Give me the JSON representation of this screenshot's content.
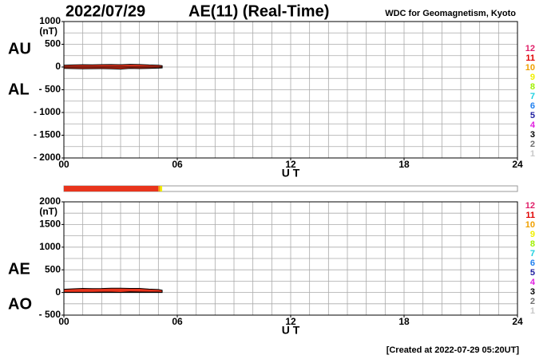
{
  "header": {
    "date": "2022/07/29",
    "title": "AE(11) (Real-Time)",
    "source": "WDC for Geomagnetism, Kyoto"
  },
  "footer": "[Created at 2022-07-29 05:20UT]",
  "coverage_bar": {
    "xlim": [
      0,
      24
    ],
    "segments": [
      {
        "start": 0,
        "end": 5.0,
        "color": "#e8341c"
      },
      {
        "start": 5.0,
        "end": 5.1,
        "color": "#f0a000"
      },
      {
        "start": 5.1,
        "end": 5.2,
        "color": "#f0f000"
      }
    ]
  },
  "chart_data": [
    {
      "type": "area",
      "unit": "(nT)",
      "xlabel": "U T",
      "side_labels": [
        "AU",
        "AL"
      ],
      "xlim": [
        0,
        24
      ],
      "ylim": [
        -2000,
        1000
      ],
      "xticks": [
        {
          "value": 0,
          "label": "00"
        },
        {
          "value": 6,
          "label": "06"
        },
        12,
        18,
        24
      ],
      "yticks": [
        1000,
        500,
        0,
        {
          "value": -500,
          "label": "- 500"
        },
        {
          "value": -1000,
          "label": "- 1000"
        },
        {
          "value": -1500,
          "label": "- 1500"
        },
        {
          "value": -2000,
          "label": "- 2000"
        }
      ],
      "xgrid": [
        1,
        2,
        3,
        4,
        5,
        6,
        7,
        8,
        9,
        10,
        11,
        12,
        13,
        14,
        15,
        16,
        17,
        18,
        19,
        20,
        21,
        22,
        23
      ],
      "ygrid": [
        750,
        500,
        250,
        0,
        -250,
        -500,
        -750,
        -1000,
        -1250,
        -1500,
        -1750
      ],
      "x": [
        0,
        0.5,
        1,
        1.5,
        2,
        2.5,
        3,
        3.5,
        4,
        4.5,
        5,
        5.2
      ],
      "series": [
        {
          "name": "AU",
          "style": "area",
          "color": "#e8341c",
          "values": [
            40,
            45,
            50,
            48,
            52,
            55,
            50,
            60,
            55,
            45,
            40,
            30
          ]
        },
        {
          "name": "AL",
          "style": "area",
          "color": "#e8341c",
          "values": [
            -30,
            -35,
            -40,
            -38,
            -35,
            -40,
            -45,
            -30,
            -35,
            -30,
            -25,
            -20
          ]
        }
      ],
      "legend": [
        {
          "label": "12",
          "color": "#e0206a"
        },
        {
          "label": "11",
          "color": "#e00000"
        },
        {
          "label": "10",
          "color": "#f0a000"
        },
        {
          "label": "9",
          "color": "#f0f000"
        },
        {
          "label": "8",
          "color": "#a0f000"
        },
        {
          "label": "7",
          "color": "#20d0e0"
        },
        {
          "label": "6",
          "color": "#2080f0"
        },
        {
          "label": "5",
          "color": "#2020a0"
        },
        {
          "label": "4",
          "color": "#e020e0"
        },
        {
          "label": "3",
          "color": "#000000"
        },
        {
          "label": "2",
          "color": "#707070"
        },
        {
          "label": "1",
          "color": "#c8c8c8"
        }
      ]
    },
    {
      "type": "area",
      "unit": "(nT)",
      "xlabel": "U T",
      "side_labels": [
        "AE",
        "AO"
      ],
      "xlim": [
        0,
        24
      ],
      "ylim": [
        -500,
        2000
      ],
      "xticks": [
        {
          "value": 0,
          "label": "00"
        },
        {
          "value": 6,
          "label": "06"
        },
        12,
        18,
        24
      ],
      "yticks": [
        2000,
        1500,
        1000,
        500,
        0,
        {
          "value": -500,
          "label": "- 500"
        }
      ],
      "xgrid": [
        1,
        2,
        3,
        4,
        5,
        6,
        7,
        8,
        9,
        10,
        11,
        12,
        13,
        14,
        15,
        16,
        17,
        18,
        19,
        20,
        21,
        22,
        23
      ],
      "ygrid": [
        1750,
        1500,
        1250,
        1000,
        750,
        500,
        250,
        0,
        -250
      ],
      "x": [
        0,
        0.5,
        1,
        1.5,
        2,
        2.5,
        3,
        3.5,
        4,
        4.5,
        5,
        5.2
      ],
      "series": [
        {
          "name": "AE",
          "style": "area",
          "color": "#e8341c",
          "values": [
            70,
            80,
            90,
            86,
            87,
            95,
            95,
            90,
            90,
            75,
            65,
            50
          ]
        },
        {
          "name": "AO",
          "style": "line",
          "color": "#000000",
          "values": [
            5,
            5,
            5,
            5,
            8.5,
            7.5,
            2.5,
            15,
            10,
            7.5,
            7.5,
            5
          ]
        }
      ],
      "legend": [
        {
          "label": "12",
          "color": "#e0206a"
        },
        {
          "label": "11",
          "color": "#e00000"
        },
        {
          "label": "10",
          "color": "#f0a000"
        },
        {
          "label": "9",
          "color": "#f0f000"
        },
        {
          "label": "8",
          "color": "#a0f000"
        },
        {
          "label": "7",
          "color": "#20d0e0"
        },
        {
          "label": "6",
          "color": "#2080f0"
        },
        {
          "label": "5",
          "color": "#2020a0"
        },
        {
          "label": "4",
          "color": "#e020e0"
        },
        {
          "label": "3",
          "color": "#000000"
        },
        {
          "label": "2",
          "color": "#707070"
        },
        {
          "label": "1",
          "color": "#c8c8c8"
        }
      ]
    }
  ]
}
